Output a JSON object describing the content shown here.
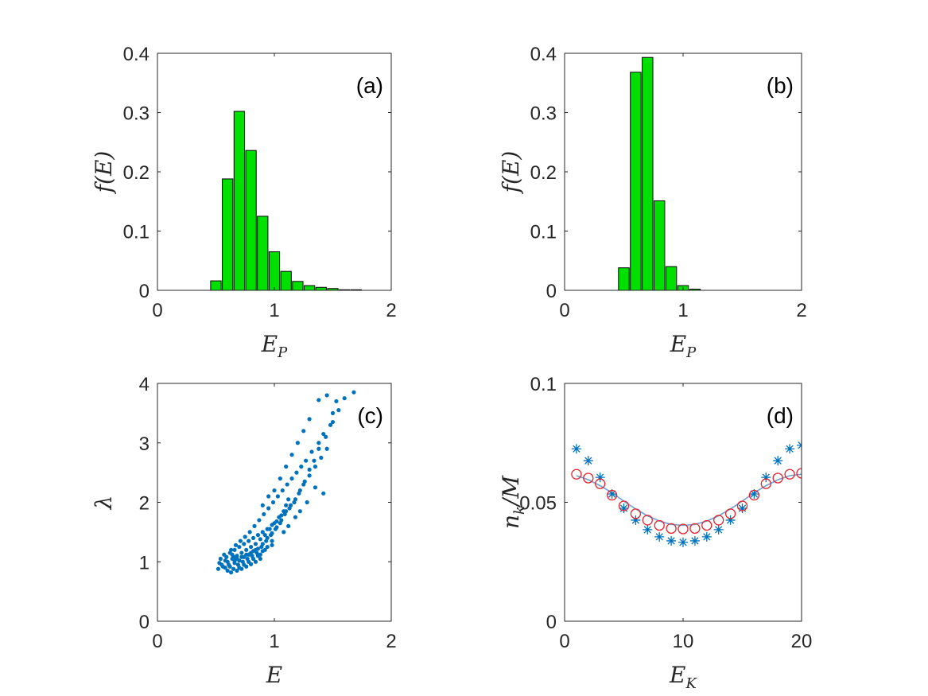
{
  "colors": {
    "bar_fill": "#00e000",
    "bar_edge": "#000000",
    "scatter": "#0072bd",
    "circle": "#e8202a",
    "fit_line": "#6fa0cf",
    "axis": "#262626"
  },
  "chart_data": [
    {
      "panel": "a",
      "type": "bar",
      "letter": "(a)",
      "xlabel": "E",
      "xlabel_sub": "P",
      "ylabel": "f(E)",
      "xlim": [
        0,
        2
      ],
      "ylim": [
        0,
        0.4
      ],
      "xticks": [
        0,
        1,
        2
      ],
      "xtick_labels": [
        "0",
        "1",
        "2"
      ],
      "yticks": [
        0,
        0.1,
        0.2,
        0.3,
        0.4
      ],
      "ytick_labels": [
        "0",
        "0.1",
        "0.2",
        "0.3",
        "0.4"
      ],
      "bar_width": 0.09,
      "x": [
        0.5,
        0.6,
        0.7,
        0.8,
        0.9,
        1.0,
        1.1,
        1.2,
        1.3,
        1.4,
        1.5,
        1.6,
        1.7
      ],
      "values": [
        0.016,
        0.188,
        0.302,
        0.236,
        0.125,
        0.065,
        0.032,
        0.015,
        0.008,
        0.005,
        0.003,
        0.001,
        0.001
      ]
    },
    {
      "panel": "b",
      "type": "bar",
      "letter": "(b)",
      "xlabel": "E",
      "xlabel_sub": "P",
      "ylabel": "f(E)",
      "xlim": [
        0,
        2
      ],
      "ylim": [
        0,
        0.4
      ],
      "xticks": [
        0,
        1,
        2
      ],
      "xtick_labels": [
        "0",
        "1",
        "2"
      ],
      "yticks": [
        0,
        0.1,
        0.2,
        0.3,
        0.4
      ],
      "ytick_labels": [
        "0",
        "0.1",
        "0.2",
        "0.3",
        "0.4"
      ],
      "bar_width": 0.09,
      "x": [
        0.5,
        0.6,
        0.7,
        0.8,
        0.9,
        1.0,
        1.1
      ],
      "values": [
        0.038,
        0.368,
        0.393,
        0.151,
        0.04,
        0.008,
        0.002
      ]
    },
    {
      "panel": "c",
      "type": "scatter",
      "letter": "(c)",
      "xlabel": "E",
      "xlabel_sub": "",
      "ylabel": "λ",
      "xlim": [
        0,
        2
      ],
      "ylim": [
        0,
        4
      ],
      "xticks": [
        0,
        1,
        2
      ],
      "xtick_labels": [
        "0",
        "1",
        "2"
      ],
      "yticks": [
        0,
        1,
        2,
        3,
        4
      ],
      "ytick_labels": [
        "0",
        "1",
        "2",
        "3",
        "4"
      ],
      "points": [
        [
          0.52,
          0.88
        ],
        [
          0.55,
          0.95
        ],
        [
          0.58,
          0.9
        ],
        [
          0.6,
          1.0
        ],
        [
          0.62,
          0.92
        ],
        [
          0.64,
          1.05
        ],
        [
          0.66,
          0.98
        ],
        [
          0.68,
          1.1
        ],
        [
          0.7,
          1.02
        ],
        [
          0.72,
          1.15
        ],
        [
          0.74,
          1.08
        ],
        [
          0.76,
          1.2
        ],
        [
          0.78,
          1.12
        ],
        [
          0.8,
          1.25
        ],
        [
          0.82,
          1.18
        ],
        [
          0.84,
          1.3
        ],
        [
          0.86,
          1.22
        ],
        [
          0.88,
          1.38
        ],
        [
          0.9,
          1.3
        ],
        [
          0.92,
          1.45
        ],
        [
          0.94,
          1.4
        ],
        [
          0.96,
          1.55
        ],
        [
          0.98,
          1.48
        ],
        [
          1.0,
          1.65
        ],
        [
          1.02,
          1.58
        ],
        [
          1.04,
          1.75
        ],
        [
          1.06,
          1.7
        ],
        [
          1.08,
          1.85
        ],
        [
          1.1,
          1.95
        ],
        [
          1.12,
          2.05
        ],
        [
          0.54,
          1.05
        ],
        [
          0.57,
          1.12
        ],
        [
          0.6,
          0.85
        ],
        [
          0.63,
          1.2
        ],
        [
          0.65,
          0.88
        ],
        [
          0.67,
          1.28
        ],
        [
          0.69,
          0.95
        ],
        [
          0.71,
          1.35
        ],
        [
          0.73,
          1.0
        ],
        [
          0.75,
          1.42
        ],
        [
          0.77,
          1.05
        ],
        [
          0.79,
          1.5
        ],
        [
          0.81,
          1.1
        ],
        [
          0.83,
          1.6
        ],
        [
          0.85,
          1.15
        ],
        [
          0.87,
          1.7
        ],
        [
          0.89,
          1.25
        ],
        [
          0.91,
          1.8
        ],
        [
          0.93,
          1.35
        ],
        [
          0.95,
          1.9
        ],
        [
          0.97,
          1.45
        ],
        [
          0.99,
          2.0
        ],
        [
          1.01,
          1.55
        ],
        [
          1.03,
          2.1
        ],
        [
          1.05,
          1.65
        ],
        [
          1.07,
          2.2
        ],
        [
          1.09,
          1.8
        ],
        [
          1.11,
          2.3
        ],
        [
          1.13,
          1.9
        ],
        [
          1.15,
          2.4
        ],
        [
          1.17,
          2.0
        ],
        [
          1.19,
          2.5
        ],
        [
          1.21,
          2.15
        ],
        [
          1.23,
          2.6
        ],
        [
          1.25,
          2.3
        ],
        [
          1.27,
          2.7
        ],
        [
          1.3,
          2.45
        ],
        [
          1.32,
          2.85
        ],
        [
          1.35,
          2.6
        ],
        [
          1.38,
          3.0
        ],
        [
          1.4,
          2.75
        ],
        [
          1.42,
          3.15
        ],
        [
          1.45,
          2.9
        ],
        [
          1.48,
          3.3
        ],
        [
          1.5,
          3.5
        ],
        [
          1.53,
          3.7
        ],
        [
          1.55,
          3.55
        ],
        [
          1.6,
          3.75
        ],
        [
          1.68,
          3.85
        ],
        [
          1.45,
          3.8
        ],
        [
          1.38,
          3.72
        ],
        [
          1.3,
          3.4
        ],
        [
          1.25,
          3.2
        ],
        [
          1.2,
          3.0
        ],
        [
          1.15,
          2.8
        ],
        [
          1.1,
          2.6
        ],
        [
          1.05,
          2.4
        ],
        [
          1.0,
          2.2
        ],
        [
          0.95,
          2.1
        ],
        [
          0.9,
          1.95
        ],
        [
          1.42,
          2.15
        ],
        [
          1.28,
          2.0
        ],
        [
          1.35,
          2.25
        ],
        [
          1.18,
          1.75
        ],
        [
          1.22,
          1.85
        ],
        [
          1.12,
          1.6
        ],
        [
          1.08,
          1.5
        ],
        [
          0.98,
          1.35
        ],
        [
          0.92,
          1.2
        ],
        [
          0.88,
          1.12
        ],
        [
          0.61,
          0.95
        ],
        [
          0.66,
          1.02
        ],
        [
          0.7,
          0.9
        ],
        [
          0.74,
          0.95
        ],
        [
          0.78,
          1.0
        ],
        [
          0.82,
          1.05
        ],
        [
          0.86,
          1.1
        ],
        [
          0.9,
          1.18
        ],
        [
          0.94,
          1.25
        ],
        [
          0.98,
          1.28
        ],
        [
          0.56,
          0.92
        ],
        [
          0.59,
          1.08
        ],
        [
          0.64,
          1.12
        ],
        [
          0.68,
          1.05
        ],
        [
          0.72,
          1.08
        ],
        [
          0.76,
          1.12
        ],
        [
          0.8,
          1.15
        ],
        [
          0.84,
          1.2
        ],
        [
          0.62,
          1.15
        ],
        [
          0.66,
          1.2
        ],
        [
          0.7,
          1.25
        ],
        [
          0.74,
          1.3
        ],
        [
          0.78,
          1.35
        ],
        [
          0.82,
          1.4
        ],
        [
          0.86,
          1.45
        ],
        [
          0.9,
          1.5
        ],
        [
          0.94,
          1.55
        ],
        [
          0.98,
          1.62
        ],
        [
          1.02,
          1.68
        ],
        [
          1.06,
          1.78
        ],
        [
          1.1,
          1.85
        ],
        [
          1.14,
          1.95
        ],
        [
          1.18,
          2.05
        ],
        [
          1.22,
          2.2
        ],
        [
          1.26,
          2.35
        ],
        [
          1.3,
          2.55
        ],
        [
          1.34,
          2.7
        ],
        [
          1.38,
          2.9
        ],
        [
          1.44,
          3.1
        ],
        [
          1.5,
          3.35
        ],
        [
          0.63,
          0.82
        ],
        [
          0.68,
          0.85
        ],
        [
          0.72,
          0.88
        ],
        [
          0.76,
          0.92
        ],
        [
          0.8,
          0.96
        ],
        [
          0.84,
          1.0
        ],
        [
          0.88,
          1.05
        ],
        [
          0.53,
          0.98
        ],
        [
          0.58,
          1.02
        ],
        [
          0.65,
          1.08
        ]
      ]
    },
    {
      "panel": "d",
      "type": "scatter",
      "letter": "(d)",
      "xlabel": "E",
      "xlabel_sub": "K",
      "ylabel": "n",
      "ylabel_sub": "k",
      "ylabel_tail": "/M",
      "xlim": [
        0,
        20
      ],
      "ylim": [
        0,
        0.1
      ],
      "xticks": [
        0,
        10,
        20
      ],
      "xtick_labels": [
        "0",
        "10",
        "20"
      ],
      "yticks": [
        0,
        0.05,
        0.1
      ],
      "ytick_labels": [
        "0",
        "0.05",
        "0.1"
      ],
      "x": [
        1,
        2,
        3,
        4,
        5,
        6,
        7,
        8,
        9,
        10,
        11,
        12,
        13,
        14,
        15,
        16,
        17,
        18,
        19,
        20
      ],
      "series": [
        {
          "marker": "star",
          "values": [
            0.0725,
            0.0675,
            0.0605,
            0.0535,
            0.0475,
            0.0425,
            0.0385,
            0.0355,
            0.0338,
            0.0332,
            0.0338,
            0.0355,
            0.0385,
            0.0425,
            0.0475,
            0.0535,
            0.0605,
            0.0675,
            0.0725,
            0.074
          ]
        },
        {
          "marker": "circle",
          "values": [
            0.0618,
            0.0602,
            0.0578,
            0.053,
            0.0485,
            0.0452,
            0.0425,
            0.0403,
            0.039,
            0.0388,
            0.039,
            0.0403,
            0.0425,
            0.0452,
            0.0485,
            0.053,
            0.0578,
            0.0602,
            0.0618,
            0.0622
          ]
        },
        {
          "marker": "line",
          "values": [
            0.0612,
            0.0595,
            0.057,
            0.054,
            0.0505,
            0.0472,
            0.0443,
            0.0421,
            0.0407,
            0.0403,
            0.0407,
            0.0421,
            0.0443,
            0.0472,
            0.0505,
            0.054,
            0.057,
            0.0595,
            0.0612,
            0.0618
          ]
        }
      ]
    }
  ]
}
